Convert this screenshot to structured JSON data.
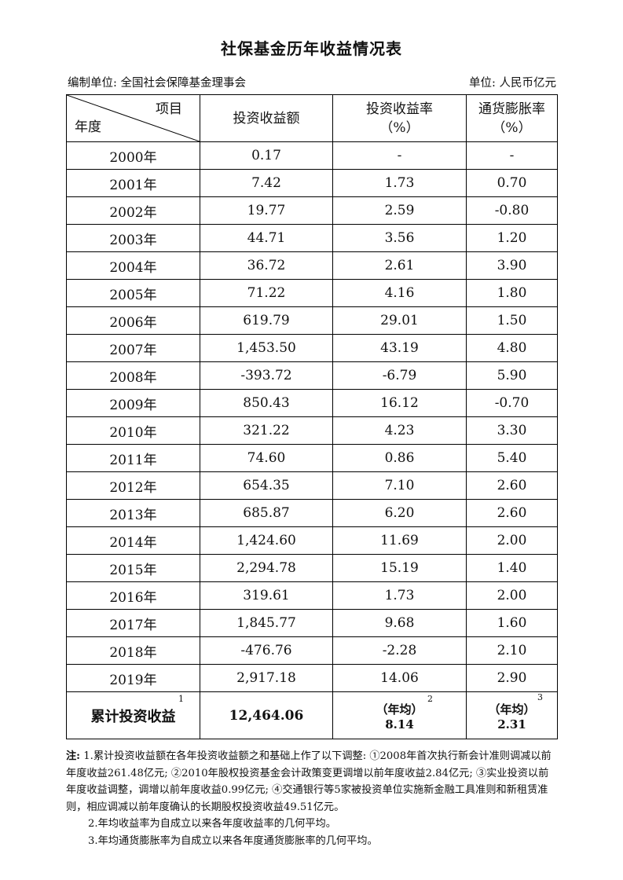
{
  "title": "社保基金历年收益情况表",
  "meta": {
    "compiler": "编制单位: 全国社会保障基金理事会",
    "unit": "单位:  人民币亿元"
  },
  "header": {
    "item": "项目",
    "year": "年度",
    "col1": "投资收益额",
    "col2_line1": "投资收益率",
    "col2_line2": "（%）",
    "col3_line1": "通货膨胀率",
    "col3_line2": "（%）"
  },
  "rows": [
    {
      "year": "2000年",
      "income": "0.17",
      "rate": "-",
      "inflation": "-"
    },
    {
      "year": "2001年",
      "income": "7.42",
      "rate": "1.73",
      "inflation": "0.70"
    },
    {
      "year": "2002年",
      "income": "19.77",
      "rate": "2.59",
      "inflation": "-0.80"
    },
    {
      "year": "2003年",
      "income": "44.71",
      "rate": "3.56",
      "inflation": "1.20"
    },
    {
      "year": "2004年",
      "income": "36.72",
      "rate": "2.61",
      "inflation": "3.90"
    },
    {
      "year": "2005年",
      "income": "71.22",
      "rate": "4.16",
      "inflation": "1.80"
    },
    {
      "year": "2006年",
      "income": "619.79",
      "rate": "29.01",
      "inflation": "1.50"
    },
    {
      "year": "2007年",
      "income": "1,453.50",
      "rate": "43.19",
      "inflation": "4.80"
    },
    {
      "year": "2008年",
      "income": "-393.72",
      "rate": "-6.79",
      "inflation": "5.90"
    },
    {
      "year": "2009年",
      "income": "850.43",
      "rate": "16.12",
      "inflation": "-0.70"
    },
    {
      "year": "2010年",
      "income": "321.22",
      "rate": "4.23",
      "inflation": "3.30"
    },
    {
      "year": "2011年",
      "income": "74.60",
      "rate": "0.86",
      "inflation": "5.40"
    },
    {
      "year": "2012年",
      "income": "654.35",
      "rate": "7.10",
      "inflation": "2.60"
    },
    {
      "year": "2013年",
      "income": "685.87",
      "rate": "6.20",
      "inflation": "2.60"
    },
    {
      "year": "2014年",
      "income": "1,424.60",
      "rate": "11.69",
      "inflation": "2.00"
    },
    {
      "year": "2015年",
      "income": "2,294.78",
      "rate": "15.19",
      "inflation": "1.40"
    },
    {
      "year": "2016年",
      "income": "319.61",
      "rate": "1.73",
      "inflation": "2.00"
    },
    {
      "year": "2017年",
      "income": "1,845.77",
      "rate": "9.68",
      "inflation": "1.60"
    },
    {
      "year": "2018年",
      "income": "-476.76",
      "rate": "-2.28",
      "inflation": "2.10"
    },
    {
      "year": "2019年",
      "income": "2,917.18",
      "rate": "14.06",
      "inflation": "2.90"
    }
  ],
  "total": {
    "label": "累计投资收益",
    "label_sup": "1",
    "income": "12,464.06",
    "rate_label": "（年均）",
    "rate_sup": "2",
    "rate_value": "8.14",
    "inflation_label": "（年均）",
    "inflation_sup": "3",
    "inflation_value": "2.31"
  },
  "notes": {
    "prefix": "注:",
    "n1": " 1.累计投资收益额在各年投资收益额之和基础上作了以下调整: ①2008年首次执行新会计准则调减以前年度收益261.48亿元; ②2010年股权投资基金会计政策变更调增以前年度收益2.84亿元; ③实业投资以前年度收益调整，调增以前年度收益0.99亿元; ④交通银行等5家被投资单位实施新金融工具准则和新租赁准则，相应调减以前年度确认的长期股权投资收益49.51亿元。",
    "n2": "2.年均收益率为自成立以来各年度收益率的几何平均。",
    "n3": "3.年均通货膨胀率为自成立以来各年度通货膨胀率的几何平均。"
  }
}
